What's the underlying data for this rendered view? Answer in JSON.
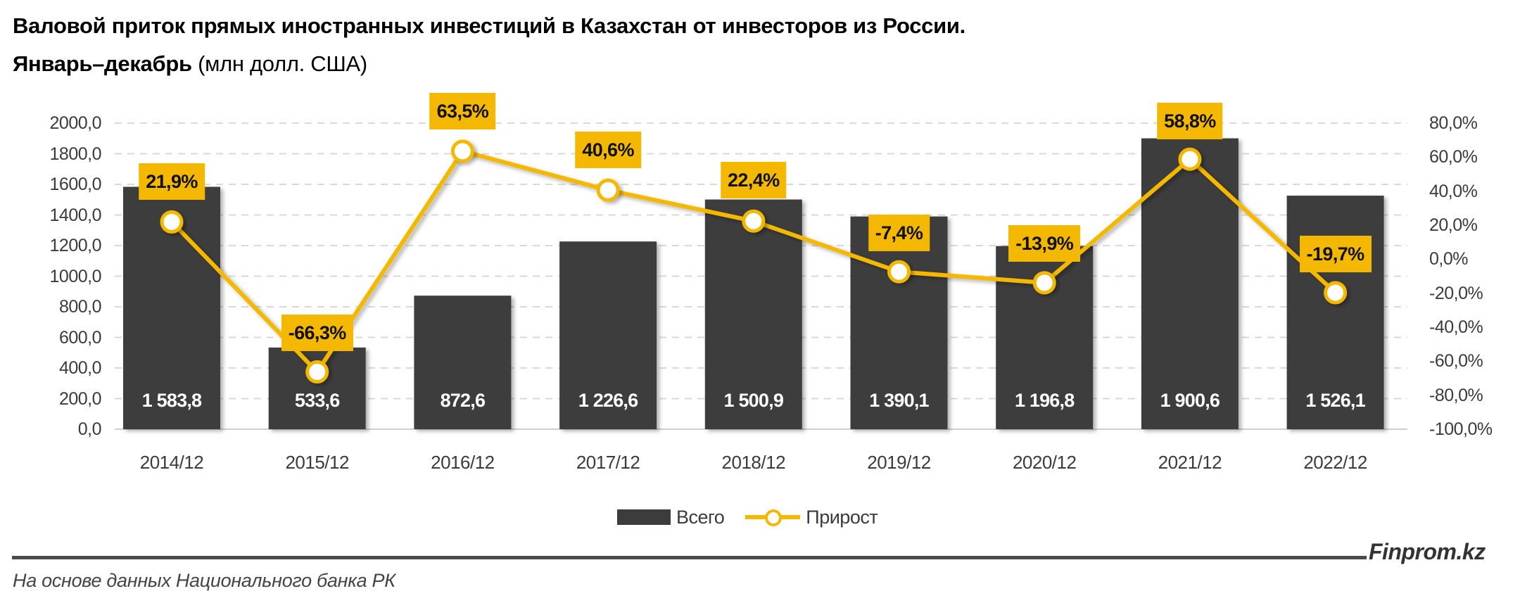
{
  "header": {
    "title_line1": "Валовой приток прямых иностранных инвестиций в Казахстан от инвесторов из России.",
    "title_line2_bold": "Январь–декабрь",
    "title_line2_unit": " (млн долл. США)"
  },
  "axes": {
    "left_ticks": [
      "2000,0",
      "1800,0",
      "1600,0",
      "1400,0",
      "1200,0",
      "1000,0",
      "800,0",
      "600,0",
      "400,0",
      "200,0",
      "0,0"
    ],
    "right_ticks": [
      "80,0%",
      "60,0%",
      "40,0%",
      "20,0%",
      "0,0%",
      "-20,0%",
      "-40,0%",
      "-60,0%",
      "-80,0%",
      "-100,0%"
    ]
  },
  "bars": [
    {
      "category": "2014/12",
      "label": "1 583,8",
      "pct_label": "21,9%"
    },
    {
      "category": "2015/12",
      "label": "533,6",
      "pct_label": "-66,3%"
    },
    {
      "category": "2016/12",
      "label": "872,6",
      "pct_label": "63,5%"
    },
    {
      "category": "2017/12",
      "label": "1 226,6",
      "pct_label": "40,6%"
    },
    {
      "category": "2018/12",
      "label": "1 500,9",
      "pct_label": "22,4%"
    },
    {
      "category": "2019/12",
      "label": "1 390,1",
      "pct_label": "-7,4%"
    },
    {
      "category": "2020/12",
      "label": "1 196,8",
      "pct_label": "-13,9%"
    },
    {
      "category": "2021/12",
      "label": "1 900,6",
      "pct_label": "58,8%"
    },
    {
      "category": "2022/12",
      "label": "1 526,1",
      "pct_label": "-19,7%"
    }
  ],
  "legend": {
    "bar_label": "Всего",
    "line_label": "Прирост"
  },
  "footer": {
    "brand": "Finprom.kz",
    "source": "На основе данных Национального банка РК"
  },
  "colors": {
    "bar": "#3c3c3c",
    "line": "#f5b800",
    "label_bg": "#f5b800",
    "grid": "#d9d9d9"
  },
  "chart_data": {
    "type": "bar",
    "title": "Валовой приток прямых иностранных инвестиций в Казахстан от инвесторов из России. Январь–декабрь (млн долл. США)",
    "categories": [
      "2014/12",
      "2015/12",
      "2016/12",
      "2017/12",
      "2018/12",
      "2019/12",
      "2020/12",
      "2021/12",
      "2022/12"
    ],
    "series": [
      {
        "name": "Всего",
        "type": "bar",
        "axis": "left",
        "values": [
          1583.8,
          533.6,
          872.6,
          1226.6,
          1500.9,
          1390.1,
          1196.8,
          1900.6,
          1526.1
        ]
      },
      {
        "name": "Прирост",
        "type": "line",
        "axis": "right",
        "unit": "%",
        "values": [
          21.9,
          -66.3,
          63.5,
          40.6,
          22.4,
          -7.4,
          -13.9,
          58.8,
          -19.7
        ]
      }
    ],
    "xlabel": "",
    "ylabel": "млн долл. США",
    "ylim": [
      0,
      2000
    ],
    "y2lim": [
      -100,
      80
    ],
    "grid": true,
    "legend_position": "bottom"
  }
}
